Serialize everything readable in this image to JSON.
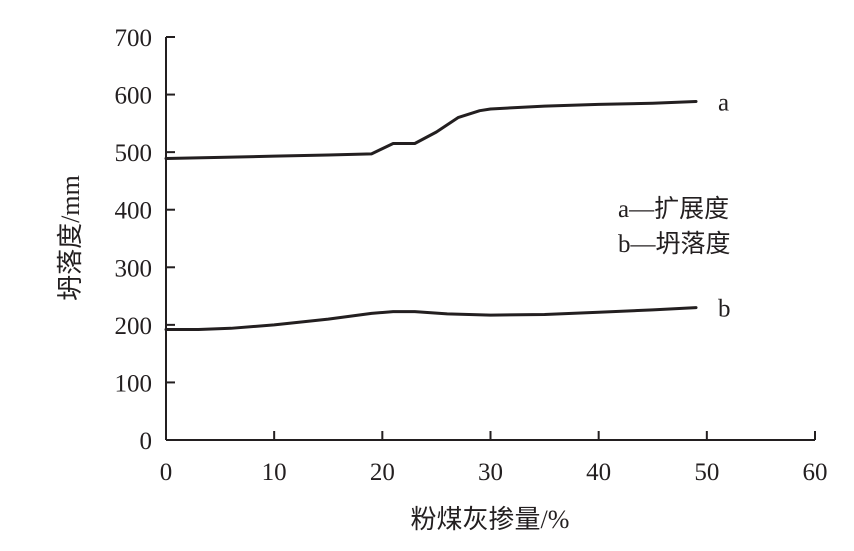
{
  "chart_data": {
    "type": "line",
    "title": "",
    "xlabel": "粉煤灰掺量/%",
    "ylabel": "坍落度/mm",
    "xlim": [
      0,
      60
    ],
    "ylim": [
      0,
      700
    ],
    "xticks": [
      0,
      10,
      20,
      30,
      40,
      50,
      60
    ],
    "yticks": [
      0,
      100,
      200,
      300,
      400,
      500,
      600,
      700
    ],
    "grid": false,
    "legend": {
      "placement": "right",
      "entries": [
        "a—扩展度",
        "b—坍落度"
      ]
    },
    "series": [
      {
        "label": "a",
        "color": "#231f20",
        "x": [
          0,
          5,
          10,
          15,
          19,
          21,
          23,
          25,
          27,
          29,
          30,
          35,
          40,
          45,
          49
        ],
        "y": [
          489,
          491,
          493,
          495,
          497,
          515,
          515,
          535,
          560,
          572,
          575,
          580,
          583,
          585,
          588
        ]
      },
      {
        "label": "b",
        "color": "#231f20",
        "x": [
          0,
          3,
          6,
          10,
          15,
          19,
          21,
          23,
          26,
          30,
          35,
          40,
          45,
          49
        ],
        "y": [
          192,
          192,
          194,
          200,
          210,
          220,
          223,
          223,
          219,
          217,
          218,
          222,
          226,
          230
        ]
      }
    ]
  }
}
